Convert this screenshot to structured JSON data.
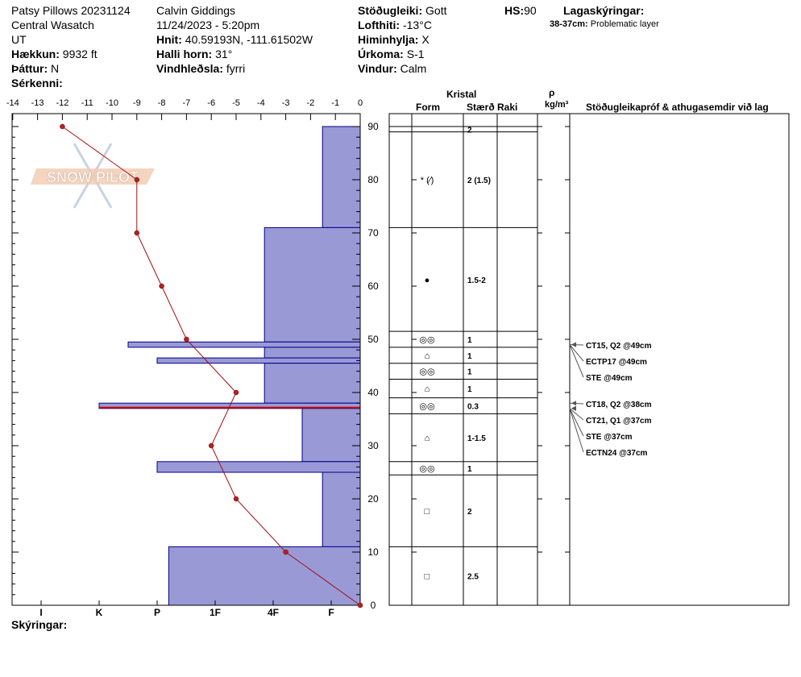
{
  "header": {
    "site": "Patsy Pillows 20231124",
    "range": "Central Wasatch",
    "state": "UT",
    "elevation_label": "Hækkun:",
    "elevation": "9932 ft",
    "aspect_label": "Þáttur:",
    "aspect": "N",
    "features_label": "Sérkenni:",
    "observer": "Calvin Giddings",
    "datetime": "11/24/2023 - 5:20pm",
    "coords_label": "Hnit:",
    "coords": "40.59193N, -111.61502W",
    "slope_label": "Halli horn:",
    "slope": "31°",
    "wind_loading_label": "Vindhleðsla:",
    "wind_loading": "fyrri",
    "stability_label": "Stöðugleiki:",
    "stability": "Gott",
    "air_temp_label": "Lofthiti:",
    "air_temp": "-13°C",
    "sky_label": "Himinhylja:",
    "sky": "X",
    "precip_label": "Úrkoma:",
    "precip": "S-1",
    "wind_label": "Vindur:",
    "wind": "Calm",
    "hs_label": "HS:",
    "hs": "90",
    "legend_title": "Lagaskýringar:",
    "legend_layer": "38-37cm:",
    "legend_text": "Problematic layer",
    "notes_label": "Skýringar:"
  },
  "columns": {
    "crystal": "Kristal",
    "form": "Form",
    "size": "Stærð",
    "moisture": "Raki",
    "rho": "ρ",
    "density_unit": "kg/m³",
    "tests": "Stöðugleikapróf & athugasemdir við lag"
  },
  "watermark": "SNOW PILOT",
  "colors": {
    "hardness_fill": "#9999d6",
    "hardness_stroke": "#00008b",
    "temp_line": "#a01010",
    "temp_point": "#b22222",
    "problem_layer": "#cc0000"
  },
  "chart_data": {
    "type": "snow-profile",
    "temperature_axis": {
      "ticks": [
        "-14",
        "-13",
        "-12",
        "-11",
        "-10",
        "-9",
        "-8",
        "-7",
        "-6",
        "-5",
        "-4",
        "-3",
        "-2",
        "-1",
        "0"
      ],
      "range": [
        -14,
        0
      ]
    },
    "height_axis": {
      "ticks": [
        "0",
        "10",
        "20",
        "30",
        "40",
        "50",
        "60",
        "70",
        "80",
        "90"
      ],
      "range": [
        0,
        90
      ]
    },
    "hardness_axis": {
      "labels": [
        "I",
        "K",
        "P",
        "1F",
        "4F",
        "F"
      ],
      "scale_values": [
        5.5,
        4.5,
        3.5,
        2.5,
        1.5,
        0.5
      ],
      "range": [
        0,
        6
      ]
    },
    "temperature_profile": [
      {
        "height": 90,
        "temp": -12
      },
      {
        "height": 80,
        "temp": -9
      },
      {
        "height": 70,
        "temp": -9
      },
      {
        "height": 60,
        "temp": -8
      },
      {
        "height": 50,
        "temp": -7
      },
      {
        "height": 40,
        "temp": -5
      },
      {
        "height": 30,
        "temp": -6
      },
      {
        "height": 20,
        "temp": -5
      },
      {
        "height": 10,
        "temp": -3
      },
      {
        "height": 0,
        "temp": 0
      }
    ],
    "hardness_layers": [
      {
        "top": 90,
        "bottom": 71,
        "hardness": "F",
        "value": 0.65
      },
      {
        "top": 71,
        "bottom": 49.5,
        "hardness": "4F",
        "value": 1.65
      },
      {
        "top": 49.5,
        "bottom": 48.5,
        "hardness": "K",
        "value": 4.0
      },
      {
        "top": 48.5,
        "bottom": 46.5,
        "hardness": "4F",
        "value": 1.65
      },
      {
        "top": 46.5,
        "bottom": 45.5,
        "hardness": "P",
        "value": 3.5
      },
      {
        "top": 45.5,
        "bottom": 38,
        "hardness": "4F",
        "value": 1.65
      },
      {
        "top": 38,
        "bottom": 37,
        "hardness": "K",
        "value": 4.5
      },
      {
        "top": 37,
        "bottom": 27,
        "hardness": "F",
        "value": 1.0
      },
      {
        "top": 27,
        "bottom": 25,
        "hardness": "P",
        "value": 3.5
      },
      {
        "top": 25,
        "bottom": 11,
        "hardness": "F",
        "value": 0.65
      },
      {
        "top": 11,
        "bottom": 0,
        "hardness": "P",
        "value": 3.3
      }
    ],
    "problem_layer": {
      "top": 38,
      "bottom": 37
    },
    "stratigraphy": [
      {
        "top": 90,
        "bottom": 89,
        "form": "",
        "size": "2"
      },
      {
        "top": 89,
        "bottom": 71,
        "form": "* (⁄)",
        "size": "2 (1.5)"
      },
      {
        "top": 71,
        "bottom": 51.5,
        "form": "●",
        "size": "1.5-2"
      },
      {
        "top": 51.5,
        "bottom": 48.5,
        "form": "◎◎",
        "size": "1"
      },
      {
        "top": 48.5,
        "bottom": 45.5,
        "form": "⌂",
        "size": "1"
      },
      {
        "top": 45.5,
        "bottom": 42.5,
        "form": "◎◎",
        "size": "1"
      },
      {
        "top": 42.5,
        "bottom": 39,
        "form": "⌂",
        "size": "1"
      },
      {
        "top": 39,
        "bottom": 36,
        "form": "◎◎",
        "size": "0.3"
      },
      {
        "top": 36,
        "bottom": 27,
        "form": "⌂",
        "size": "1-1.5"
      },
      {
        "top": 27,
        "bottom": 24.5,
        "form": "◎◎",
        "size": "1"
      },
      {
        "top": 24.5,
        "bottom": 11,
        "form": "□",
        "size": "2"
      },
      {
        "top": 11,
        "bottom": 0,
        "form": "□",
        "size": "2.5"
      }
    ],
    "stability_tests": [
      {
        "text": "CT15, Q2 @49cm",
        "height": 49
      },
      {
        "text": "ECTP17 @49cm",
        "height": 49
      },
      {
        "text": "STE @49cm",
        "height": 49
      },
      {
        "text": "CT18, Q2 @38cm",
        "height": 38
      },
      {
        "text": "CT21, Q1 @37cm",
        "height": 37
      },
      {
        "text": "STE @37cm",
        "height": 37
      },
      {
        "text": "ECTN24 @37cm",
        "height": 37
      }
    ]
  }
}
